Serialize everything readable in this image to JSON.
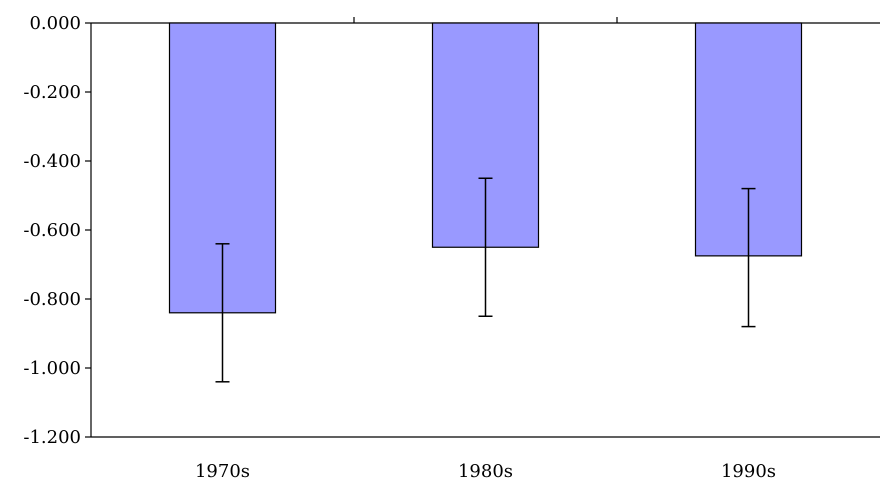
{
  "chart_data": {
    "type": "bar",
    "title": "",
    "xlabel": "",
    "ylabel": "",
    "categories": [
      "1970s",
      "1980s",
      "1990s"
    ],
    "series": [
      {
        "values": [
          -0.84,
          -0.65,
          -0.675
        ],
        "error_low": [
          -1.04,
          -0.85,
          -0.88
        ],
        "error_high": [
          -0.64,
          -0.45,
          -0.48
        ]
      }
    ],
    "ylim": [
      -1.2,
      0.0
    ],
    "yticks": [
      0.0,
      -0.2,
      -0.4,
      -0.6,
      -0.8,
      -1.0,
      -1.2
    ],
    "ytick_labels": [
      "0.000",
      "-0.200",
      "-0.400",
      "-0.600",
      "-0.800",
      "-1.000",
      "-1.200"
    ],
    "grid": false,
    "legend": "none",
    "colors": {
      "bar_fill": "#9999ff",
      "bar_stroke": "#000000"
    }
  }
}
